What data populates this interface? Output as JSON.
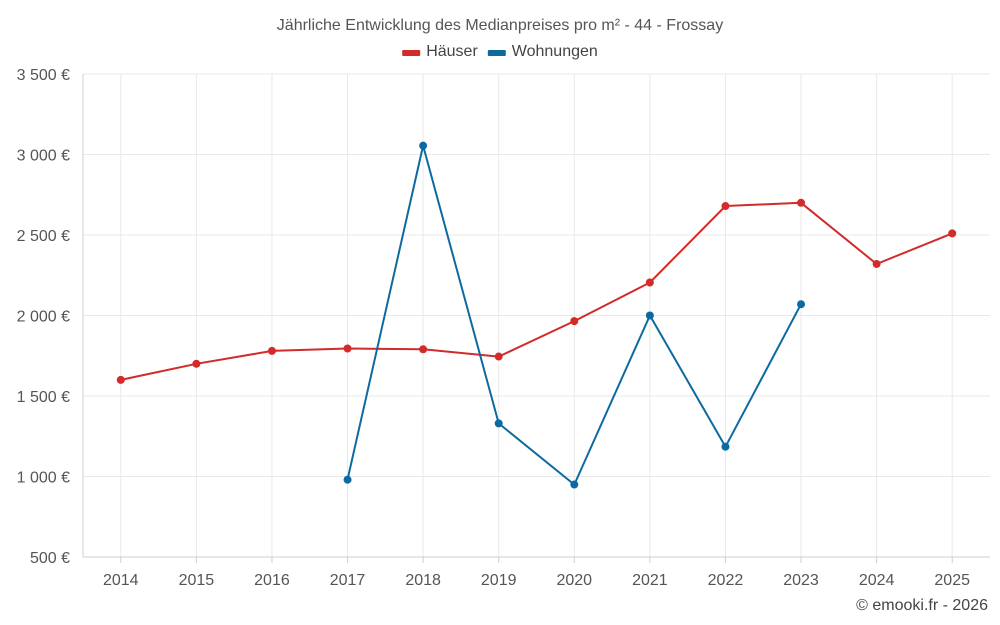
{
  "chart_data": {
    "type": "line",
    "title": "Jährliche Entwicklung des Medianpreises pro m² - 44 - Frossay",
    "categories": [
      "2014",
      "2015",
      "2016",
      "2017",
      "2018",
      "2019",
      "2020",
      "2021",
      "2022",
      "2023",
      "2024",
      "2025"
    ],
    "series": [
      {
        "name": "Häuser",
        "color": "#d32a2a",
        "values": [
          1600,
          1700,
          1780,
          1795,
          1790,
          1745,
          1965,
          2205,
          2680,
          2700,
          2320,
          2510
        ]
      },
      {
        "name": "Wohnungen",
        "color": "#0d6aa0",
        "values": [
          null,
          null,
          null,
          980,
          3055,
          1330,
          950,
          2000,
          1185,
          2070,
          null,
          null
        ]
      }
    ],
    "ylim": [
      500,
      3500
    ],
    "yticks": [
      500,
      1000,
      1500,
      2000,
      2500,
      3000,
      3500
    ],
    "ytick_labels": [
      "500 €",
      "1 000 €",
      "1 500 €",
      "2 000 €",
      "2 500 €",
      "3 000 €",
      "3 500 €"
    ],
    "xlabel": "",
    "ylabel": "",
    "grid": true,
    "legend_position": "top-center"
  },
  "credit": "© emooki.fr - 2026"
}
